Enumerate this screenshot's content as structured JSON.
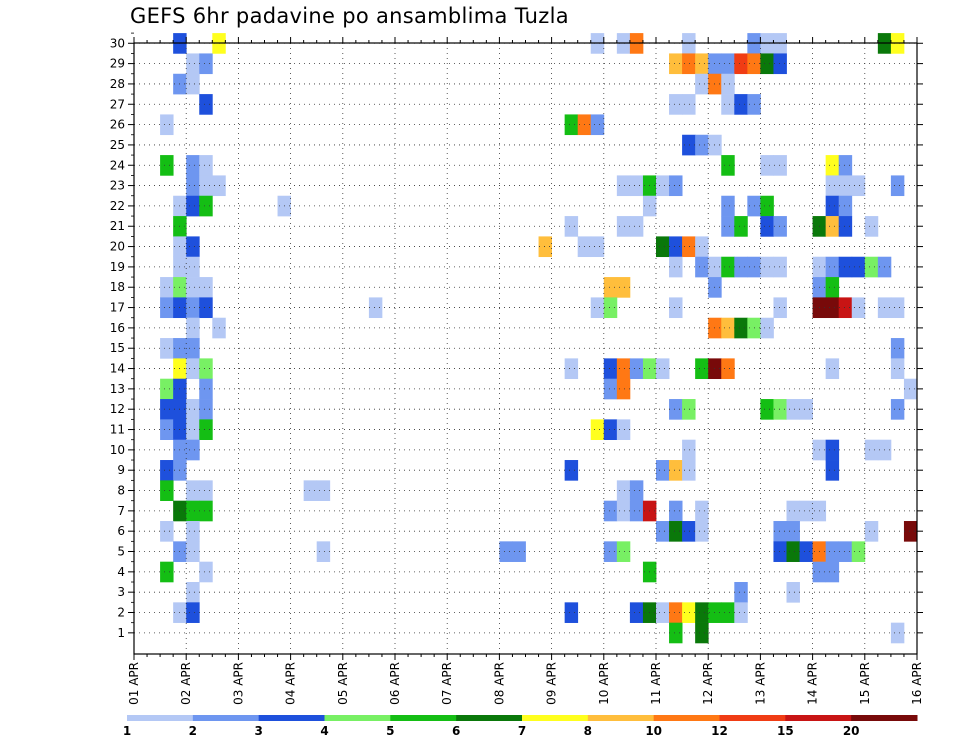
{
  "chart_data": {
    "type": "heatmap",
    "title": "GEFS 6hr padavine po ansamblima Tuzla",
    "x_tick_labels": [
      "01 APR",
      "02 APR",
      "03 APR",
      "04 APR",
      "05 APR",
      "06 APR",
      "07 APR",
      "08 APR",
      "09 APR",
      "10 APR",
      "11 APR",
      "12 APR",
      "13 APR",
      "14 APR",
      "15 APR",
      "16 APR"
    ],
    "x_steps_per_day": 4,
    "x_steps_total": 60,
    "y_tick_labels": [
      1,
      2,
      3,
      4,
      5,
      6,
      7,
      8,
      9,
      10,
      11,
      12,
      13,
      14,
      15,
      16,
      17,
      18,
      19,
      20,
      21,
      22,
      23,
      24,
      25,
      26,
      27,
      28,
      29,
      30
    ],
    "grid": true,
    "legend": {
      "placement": "bottom",
      "bins": [
        {
          "from": 1,
          "color": "#b4c8f5"
        },
        {
          "from": 2,
          "color": "#6e96f0"
        },
        {
          "from": 3,
          "color": "#1e50dc"
        },
        {
          "from": 4,
          "color": "#78f064"
        },
        {
          "from": 5,
          "color": "#14be14"
        },
        {
          "from": 6,
          "color": "#0a780a"
        },
        {
          "from": 7,
          "color": "#ffff1e"
        },
        {
          "from": 8,
          "color": "#ffbe3c"
        },
        {
          "from": 10,
          "color": "#ff7814"
        },
        {
          "from": 12,
          "color": "#f03c14"
        },
        {
          "from": 15,
          "color": "#c81414"
        },
        {
          "from": 20,
          "color": "#780a0a"
        }
      ],
      "labels": [
        "1",
        "2",
        "3",
        "4",
        "5",
        "6",
        "7",
        "8",
        "10",
        "12",
        "15",
        "20"
      ]
    },
    "cells": [
      [
        4,
        30,
        3
      ],
      [
        7,
        30,
        7
      ],
      [
        36,
        30,
        1
      ],
      [
        38,
        30,
        1
      ],
      [
        39,
        30,
        10
      ],
      [
        43,
        30,
        1
      ],
      [
        48,
        30,
        2
      ],
      [
        49,
        30,
        1
      ],
      [
        50,
        30,
        1
      ],
      [
        58,
        30,
        6
      ],
      [
        59,
        30,
        7
      ],
      [
        5,
        29,
        1
      ],
      [
        6,
        29,
        2
      ],
      [
        42,
        29,
        8
      ],
      [
        43,
        29,
        10
      ],
      [
        44,
        29,
        8
      ],
      [
        45,
        29,
        2
      ],
      [
        46,
        29,
        2
      ],
      [
        47,
        29,
        12
      ],
      [
        48,
        29,
        10
      ],
      [
        49,
        29,
        6
      ],
      [
        50,
        29,
        3
      ],
      [
        4,
        28,
        2
      ],
      [
        5,
        28,
        1
      ],
      [
        44,
        28,
        1
      ],
      [
        45,
        28,
        10
      ],
      [
        46,
        28,
        1
      ],
      [
        6,
        27,
        3
      ],
      [
        42,
        27,
        1
      ],
      [
        43,
        27,
        1
      ],
      [
        46,
        27,
        1
      ],
      [
        47,
        27,
        3
      ],
      [
        48,
        27,
        2
      ],
      [
        3,
        26,
        1
      ],
      [
        34,
        26,
        5
      ],
      [
        35,
        26,
        10
      ],
      [
        36,
        26,
        2
      ],
      [
        43,
        25,
        3
      ],
      [
        44,
        25,
        2
      ],
      [
        45,
        25,
        1
      ],
      [
        3,
        24,
        5
      ],
      [
        5,
        24,
        2
      ],
      [
        6,
        24,
        1
      ],
      [
        46,
        24,
        5
      ],
      [
        49,
        24,
        1
      ],
      [
        50,
        24,
        1
      ],
      [
        54,
        24,
        7
      ],
      [
        55,
        24,
        2
      ],
      [
        5,
        23,
        2
      ],
      [
        6,
        23,
        1
      ],
      [
        7,
        23,
        1
      ],
      [
        38,
        23,
        1
      ],
      [
        39,
        23,
        1
      ],
      [
        54,
        23,
        1
      ],
      [
        55,
        23,
        1
      ],
      [
        56,
        23,
        1
      ],
      [
        40,
        23,
        5
      ],
      [
        41,
        23,
        1
      ],
      [
        42,
        23,
        2
      ],
      [
        59,
        23,
        2
      ],
      [
        4,
        22,
        1
      ],
      [
        5,
        22,
        3
      ],
      [
        6,
        22,
        5
      ],
      [
        12,
        22,
        1
      ],
      [
        40,
        22,
        1
      ],
      [
        46,
        22,
        2
      ],
      [
        48,
        22,
        2
      ],
      [
        49,
        22,
        5
      ],
      [
        54,
        22,
        3
      ],
      [
        55,
        22,
        2
      ],
      [
        4,
        21,
        5
      ],
      [
        34,
        21,
        1
      ],
      [
        38,
        21,
        1
      ],
      [
        39,
        21,
        1
      ],
      [
        46,
        21,
        2
      ],
      [
        47,
        21,
        5
      ],
      [
        49,
        21,
        3
      ],
      [
        50,
        21,
        2
      ],
      [
        53,
        21,
        6
      ],
      [
        54,
        21,
        8
      ],
      [
        55,
        21,
        3
      ],
      [
        57,
        21,
        1
      ],
      [
        4,
        20,
        1
      ],
      [
        5,
        20,
        3
      ],
      [
        32,
        20,
        8
      ],
      [
        35,
        20,
        1
      ],
      [
        36,
        20,
        1
      ],
      [
        41,
        20,
        6
      ],
      [
        42,
        20,
        3
      ],
      [
        43,
        20,
        10
      ],
      [
        44,
        20,
        1
      ],
      [
        4,
        19,
        1
      ],
      [
        5,
        19,
        1
      ],
      [
        42,
        19,
        1
      ],
      [
        44,
        19,
        2
      ],
      [
        45,
        19,
        1
      ],
      [
        46,
        19,
        5
      ],
      [
        47,
        19,
        2
      ],
      [
        48,
        19,
        2
      ],
      [
        49,
        19,
        1
      ],
      [
        50,
        19,
        1
      ],
      [
        53,
        19,
        1
      ],
      [
        54,
        19,
        2
      ],
      [
        55,
        19,
        3
      ],
      [
        56,
        19,
        3
      ],
      [
        57,
        19,
        4
      ],
      [
        58,
        19,
        2
      ],
      [
        3,
        18,
        1
      ],
      [
        4,
        18,
        4
      ],
      [
        5,
        18,
        1
      ],
      [
        6,
        18,
        1
      ],
      [
        37,
        18,
        8
      ],
      [
        38,
        18,
        8
      ],
      [
        45,
        18,
        2
      ],
      [
        53,
        18,
        2
      ],
      [
        54,
        18,
        5
      ],
      [
        3,
        17,
        2
      ],
      [
        4,
        17,
        3
      ],
      [
        5,
        17,
        2
      ],
      [
        6,
        17,
        3
      ],
      [
        19,
        17,
        1
      ],
      [
        36,
        17,
        1
      ],
      [
        37,
        17,
        4
      ],
      [
        42,
        17,
        1
      ],
      [
        50,
        17,
        1
      ],
      [
        53,
        17,
        20
      ],
      [
        54,
        17,
        20
      ],
      [
        55,
        17,
        15
      ],
      [
        56,
        17,
        1
      ],
      [
        58,
        17,
        1
      ],
      [
        59,
        17,
        1
      ],
      [
        5,
        16,
        1
      ],
      [
        7,
        16,
        1
      ],
      [
        45,
        16,
        10
      ],
      [
        46,
        16,
        8
      ],
      [
        47,
        16,
        6
      ],
      [
        48,
        16,
        4
      ],
      [
        49,
        16,
        1
      ],
      [
        3,
        15,
        1
      ],
      [
        4,
        15,
        2
      ],
      [
        5,
        15,
        2
      ],
      [
        59,
        15,
        2
      ],
      [
        4,
        14,
        7
      ],
      [
        5,
        14,
        1
      ],
      [
        6,
        14,
        4
      ],
      [
        34,
        14,
        1
      ],
      [
        37,
        14,
        3
      ],
      [
        38,
        14,
        10
      ],
      [
        39,
        14,
        2
      ],
      [
        40,
        14,
        4
      ],
      [
        41,
        14,
        1
      ],
      [
        44,
        14,
        5
      ],
      [
        45,
        14,
        20
      ],
      [
        46,
        14,
        10
      ],
      [
        54,
        14,
        1
      ],
      [
        59,
        14,
        1
      ],
      [
        3,
        13,
        4
      ],
      [
        4,
        13,
        3
      ],
      [
        6,
        13,
        2
      ],
      [
        37,
        13,
        2
      ],
      [
        38,
        13,
        10
      ],
      [
        60,
        13,
        1
      ],
      [
        3,
        12,
        3
      ],
      [
        4,
        12,
        3
      ],
      [
        5,
        12,
        1
      ],
      [
        6,
        12,
        2
      ],
      [
        42,
        12,
        2
      ],
      [
        43,
        12,
        4
      ],
      [
        49,
        12,
        5
      ],
      [
        50,
        12,
        4
      ],
      [
        51,
        12,
        1
      ],
      [
        52,
        12,
        1
      ],
      [
        59,
        12,
        2
      ],
      [
        3,
        11,
        2
      ],
      [
        4,
        11,
        3
      ],
      [
        5,
        11,
        1
      ],
      [
        6,
        11,
        5
      ],
      [
        36,
        11,
        7
      ],
      [
        37,
        11,
        3
      ],
      [
        38,
        11,
        1
      ],
      [
        4,
        10,
        2
      ],
      [
        5,
        10,
        2
      ],
      [
        43,
        10,
        1
      ],
      [
        53,
        10,
        1
      ],
      [
        54,
        10,
        3
      ],
      [
        57,
        10,
        1
      ],
      [
        58,
        10,
        1
      ],
      [
        3,
        9,
        3
      ],
      [
        4,
        9,
        2
      ],
      [
        34,
        9,
        3
      ],
      [
        41,
        9,
        2
      ],
      [
        42,
        9,
        8
      ],
      [
        43,
        9,
        1
      ],
      [
        54,
        9,
        3
      ],
      [
        3,
        8,
        5
      ],
      [
        5,
        8,
        1
      ],
      [
        6,
        8,
        1
      ],
      [
        14,
        8,
        1
      ],
      [
        15,
        8,
        1
      ],
      [
        38,
        8,
        1
      ],
      [
        39,
        8,
        2
      ],
      [
        4,
        7,
        6
      ],
      [
        5,
        7,
        5
      ],
      [
        6,
        7,
        5
      ],
      [
        37,
        7,
        2
      ],
      [
        38,
        7,
        1
      ],
      [
        39,
        7,
        2
      ],
      [
        40,
        7,
        15
      ],
      [
        42,
        7,
        2
      ],
      [
        44,
        7,
        1
      ],
      [
        51,
        7,
        1
      ],
      [
        52,
        7,
        1
      ],
      [
        53,
        7,
        1
      ],
      [
        3,
        6,
        1
      ],
      [
        5,
        6,
        1
      ],
      [
        41,
        6,
        2
      ],
      [
        42,
        6,
        6
      ],
      [
        43,
        6,
        3
      ],
      [
        44,
        6,
        1
      ],
      [
        50,
        6,
        2
      ],
      [
        51,
        6,
        2
      ],
      [
        57,
        6,
        1
      ],
      [
        60,
        6,
        20
      ],
      [
        4,
        5,
        2
      ],
      [
        5,
        5,
        1
      ],
      [
        15,
        5,
        1
      ],
      [
        29,
        5,
        2
      ],
      [
        30,
        5,
        2
      ],
      [
        37,
        5,
        2
      ],
      [
        38,
        5,
        4
      ],
      [
        50,
        5,
        3
      ],
      [
        51,
        5,
        6
      ],
      [
        52,
        5,
        3
      ],
      [
        53,
        5,
        10
      ],
      [
        54,
        5,
        2
      ],
      [
        55,
        5,
        2
      ],
      [
        56,
        5,
        4
      ],
      [
        3,
        4,
        5
      ],
      [
        6,
        4,
        1
      ],
      [
        40,
        4,
        5
      ],
      [
        53,
        4,
        2
      ],
      [
        54,
        4,
        2
      ],
      [
        5,
        3,
        1
      ],
      [
        47,
        3,
        2
      ],
      [
        51,
        3,
        1
      ],
      [
        4,
        2,
        1
      ],
      [
        5,
        2,
        3
      ],
      [
        34,
        2,
        3
      ],
      [
        39,
        2,
        3
      ],
      [
        40,
        2,
        6
      ],
      [
        41,
        2,
        1
      ],
      [
        42,
        2,
        10
      ],
      [
        43,
        2,
        7
      ],
      [
        44,
        2,
        6
      ],
      [
        45,
        2,
        5
      ],
      [
        46,
        2,
        5
      ],
      [
        47,
        2,
        1
      ],
      [
        42,
        1,
        5
      ],
      [
        44,
        1,
        6
      ],
      [
        59,
        1,
        1
      ]
    ]
  }
}
